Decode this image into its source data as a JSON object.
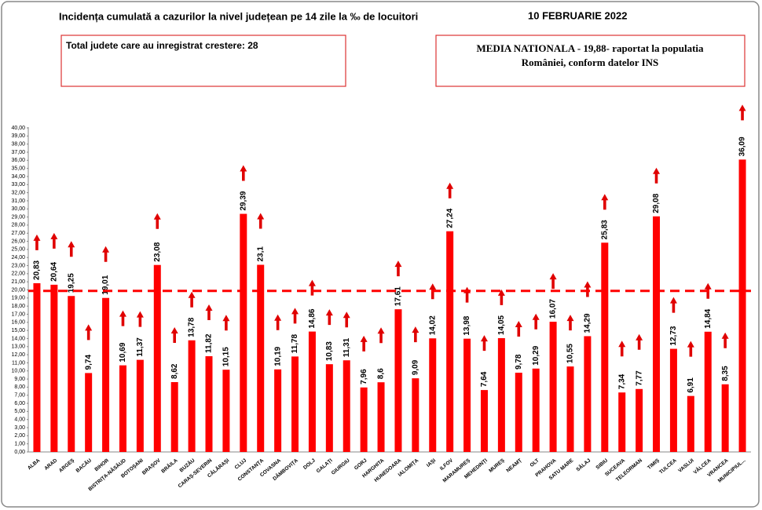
{
  "chart_data": {
    "type": "bar",
    "title": "Incidența cumulată a cazurilor la nivel județean pe 14 zile la ‰ de locuitori",
    "date": "10 FEBRUARIE 2022",
    "annotations": [
      "Total judete care au inregistrat crestere: 28",
      "MEDIA NATIONALA - 19,88-  raportat la populatia",
      "României, conform datelor INS"
    ],
    "categories": [
      "ALBA",
      "ARAD",
      "ARGEȘ",
      "BACĂU",
      "BIHOR",
      "BISTRIȚA-NĂSĂUD",
      "BOTOȘANI",
      "BRAȘOV",
      "BRĂILA",
      "BUZĂU",
      "CARAȘ-SEVERIN",
      "CĂLĂRAȘI",
      "CLUJ",
      "CONSTANȚA",
      "COVASNA",
      "DÂMBOVIȚA",
      "DOLJ",
      "GALAȚI",
      "GIURGIU",
      "GORJ",
      "HARGHITA",
      "HUNEDOARA",
      "IALOMIȚA",
      "IAȘI",
      "ILFOV",
      "MARAMUREȘ",
      "MEHEDINȚI",
      "MUREȘ",
      "NEAMȚ",
      "OLT",
      "PRAHOVA",
      "SATU MARE",
      "SĂLAJ",
      "SIBIU",
      "SUCEAVA",
      "TELEORMAN",
      "TIMIȘ",
      "TULCEA",
      "VASLUI",
      "VÂLCEA",
      "VRANCEA",
      "MUNICIPIUL..."
    ],
    "values": [
      20.83,
      20.64,
      19.25,
      9.74,
      19.01,
      10.69,
      11.37,
      23.08,
      8.62,
      13.78,
      11.82,
      10.15,
      29.39,
      23.1,
      10.19,
      11.78,
      14.86,
      10.83,
      11.31,
      7.96,
      8.6,
      17.61,
      9.09,
      14.02,
      27.24,
      13.98,
      7.64,
      14.05,
      9.78,
      10.29,
      16.07,
      10.55,
      14.29,
      25.83,
      7.34,
      7.77,
      29.08,
      12.73,
      6.91,
      14.84,
      8.35,
      36.09
    ],
    "value_labels": [
      "20,83",
      "20,64",
      "19,25",
      "9,74",
      "19,01",
      "10,69",
      "11,37",
      "23,08",
      "8,62",
      "13,78",
      "11,82",
      "10,15",
      "29,39",
      "23,1",
      "10,19",
      "11,78",
      "14,86",
      "10,83",
      "11,31",
      "7,96",
      "8,6",
      "17,61",
      "9,09",
      "14,02",
      "27,24",
      "13,98",
      "7,64",
      "14,05",
      "9,78",
      "10,29",
      "16,07",
      "10,55",
      "14,29",
      "25,83",
      "7,34",
      "7,77",
      "29,08",
      "12,73",
      "6,91",
      "14,84",
      "8,35",
      "36,09"
    ],
    "color": "#ff0000",
    "reference_line": {
      "value": 19.88,
      "color": "#ff0000"
    },
    "ylim": [
      0,
      40
    ],
    "yticks": [
      {
        "value": 0,
        "label": "0,00"
      },
      {
        "value": 1,
        "label": "1,00"
      },
      {
        "value": 2,
        "label": "2,00"
      },
      {
        "value": 3,
        "label": "3,00"
      },
      {
        "value": 4,
        "label": "4,00"
      },
      {
        "value": 5,
        "label": "5,00"
      },
      {
        "value": 6,
        "label": "6,00"
      },
      {
        "value": 7,
        "label": "7,00"
      },
      {
        "value": 8,
        "label": "8,00"
      },
      {
        "value": 9,
        "label": "9,00"
      },
      {
        "value": 10,
        "label": "10,00"
      },
      {
        "value": 11,
        "label": "11,00"
      },
      {
        "value": 12,
        "label": "12,00"
      },
      {
        "value": 13,
        "label": "13,00"
      },
      {
        "value": 14,
        "label": "14,00"
      },
      {
        "value": 15,
        "label": "15,00"
      },
      {
        "value": 16,
        "label": "16,00"
      },
      {
        "value": 17,
        "label": "17,00"
      },
      {
        "value": 18,
        "label": "18,00"
      },
      {
        "value": 19,
        "label": "19,00"
      },
      {
        "value": 20,
        "label": "20,00"
      },
      {
        "value": 21,
        "label": "21,00"
      },
      {
        "value": 22,
        "label": "22,00"
      },
      {
        "value": 23,
        "label": "23,00"
      },
      {
        "value": 24,
        "label": "24,00"
      },
      {
        "value": 25,
        "label": "25,00"
      },
      {
        "value": 26,
        "label": "26,00"
      },
      {
        "value": 27,
        "label": "27,00"
      },
      {
        "value": 28,
        "label": "28,00"
      },
      {
        "value": 29,
        "label": "29,00"
      },
      {
        "value": 30,
        "label": "30,00"
      },
      {
        "value": 31,
        "label": "31,00"
      },
      {
        "value": 32,
        "label": "32,00"
      },
      {
        "value": 33,
        "label": "33,00"
      },
      {
        "value": 34,
        "label": "34,00"
      },
      {
        "value": 35,
        "label": "35,00"
      },
      {
        "value": 36,
        "label": "36,00"
      },
      {
        "value": 37,
        "label": "37,00"
      },
      {
        "value": 38,
        "label": "38,00"
      },
      {
        "value": 39,
        "label": "39,00"
      },
      {
        "value": 40,
        "label": "40,00"
      }
    ],
    "grid": false
  }
}
